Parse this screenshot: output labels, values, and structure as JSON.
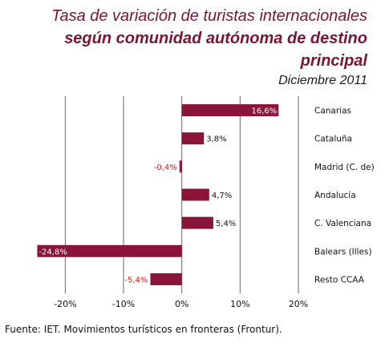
{
  "header": {
    "title_line1": "Tasa de variación de turistas internacionales",
    "title_line2": "según comunidad autónoma de destino principal",
    "subtitle": "Diciembre 2011"
  },
  "footer": {
    "source": "Fuente: IET. Movimientos turísticos en fronteras (Frontur)."
  },
  "colors": {
    "bar": "#8b1538",
    "negative_label": "#e8151b",
    "positive_label": "#111111",
    "gridline": "#666666"
  },
  "chart_data": {
    "type": "bar",
    "orientation": "horizontal",
    "categories": [
      "Canarias",
      "Cataluña",
      "Madrid (C. de)",
      "Andalucía",
      "C. Valenciana",
      "Balears (Illes)",
      "Resto  CCAA"
    ],
    "values": [
      16.6,
      3.8,
      -0.4,
      4.7,
      5.4,
      -24.8,
      -5.4
    ],
    "value_labels": [
      "16,6%",
      "3,8%",
      "-0,4%",
      "4,7%",
      "5,4%",
      "-24,8%",
      "-5,4%"
    ],
    "xlim": [
      -25,
      20
    ],
    "xticks": [
      -20,
      -10,
      0,
      10,
      20
    ],
    "xtick_labels": [
      "-20%",
      "-10%",
      "0%",
      "10%",
      "20%"
    ],
    "grid": true
  }
}
